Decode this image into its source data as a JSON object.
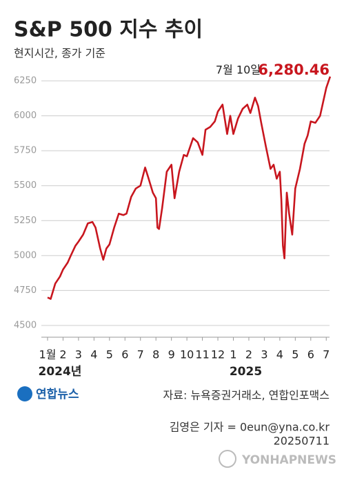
{
  "chart_data": {
    "type": "line",
    "title": "S&P 500 지수 추이",
    "subtitle": "현지시간, 종가 기준",
    "x": [
      1.0,
      1.2,
      1.5,
      1.8,
      2.0,
      2.3,
      2.5,
      2.8,
      3.0,
      3.3,
      3.6,
      3.9,
      4.1,
      4.4,
      4.6,
      4.8,
      5.0,
      5.3,
      5.6,
      5.9,
      6.1,
      6.4,
      6.7,
      7.0,
      7.3,
      7.5,
      7.8,
      8.0,
      8.1,
      8.2,
      8.4,
      8.7,
      9.0,
      9.2,
      9.5,
      9.8,
      10.0,
      10.4,
      10.7,
      11.0,
      11.2,
      11.5,
      11.8,
      12.0,
      12.3,
      12.6,
      12.8,
      13.0,
      13.3,
      13.6,
      13.9,
      14.1,
      14.4,
      14.6,
      14.8,
      15.1,
      15.4,
      15.6,
      15.8,
      16.0,
      16.1,
      16.2,
      16.3,
      16.45,
      16.6,
      16.8,
      17.0,
      17.3,
      17.6,
      17.8,
      18.0,
      18.3,
      18.6,
      18.8,
      19.0,
      19.25
    ],
    "series": [
      {
        "name": "S&P 500",
        "color": "#c8161e",
        "values": [
          4700,
          4690,
          4800,
          4850,
          4900,
          4950,
          5000,
          5070,
          5100,
          5150,
          5230,
          5240,
          5200,
          5050,
          4970,
          5050,
          5080,
          5200,
          5300,
          5290,
          5300,
          5420,
          5480,
          5500,
          5630,
          5560,
          5450,
          5410,
          5200,
          5190,
          5340,
          5600,
          5650,
          5410,
          5600,
          5720,
          5710,
          5840,
          5810,
          5720,
          5900,
          5920,
          5960,
          6030,
          6080,
          5870,
          6000,
          5870,
          5980,
          6050,
          6080,
          6020,
          6130,
          6070,
          5950,
          5780,
          5620,
          5650,
          5550,
          5600,
          5400,
          5070,
          4980,
          5450,
          5300,
          5150,
          5480,
          5620,
          5800,
          5860,
          5960,
          5950,
          6000,
          6100,
          6200,
          6280.46
        ]
      }
    ],
    "annotation": {
      "text": "7월 10일",
      "value_label": "6,280.46"
    },
    "ylim": [
      4500,
      6250
    ],
    "yticks": [
      4500,
      4750,
      5000,
      5250,
      5500,
      5750,
      6000,
      6250
    ],
    "xlim": [
      0.6,
      19.3
    ],
    "xticks": [
      {
        "value": 1,
        "label": "1월"
      },
      2,
      3,
      4,
      5,
      6,
      7,
      8,
      9,
      10,
      11,
      12,
      {
        "value": 13,
        "label": "1"
      },
      {
        "value": 14,
        "label": "2"
      },
      {
        "value": 15,
        "label": "3"
      },
      {
        "value": 16,
        "label": "4"
      },
      {
        "value": 17,
        "label": "5"
      },
      {
        "value": 18,
        "label": "6"
      },
      {
        "value": 19,
        "label": "7"
      }
    ],
    "year_labels": [
      "2024년",
      "2025"
    ],
    "grid": true
  },
  "footer": {
    "logo": "연합뉴스",
    "source": "자료: 뉴욕증권거래소, 연합인포맥스",
    "credit": "김영은 기자 = 0eun@yna.co.kr",
    "date": "20250711",
    "watermark": "YONHAPNEWS"
  }
}
